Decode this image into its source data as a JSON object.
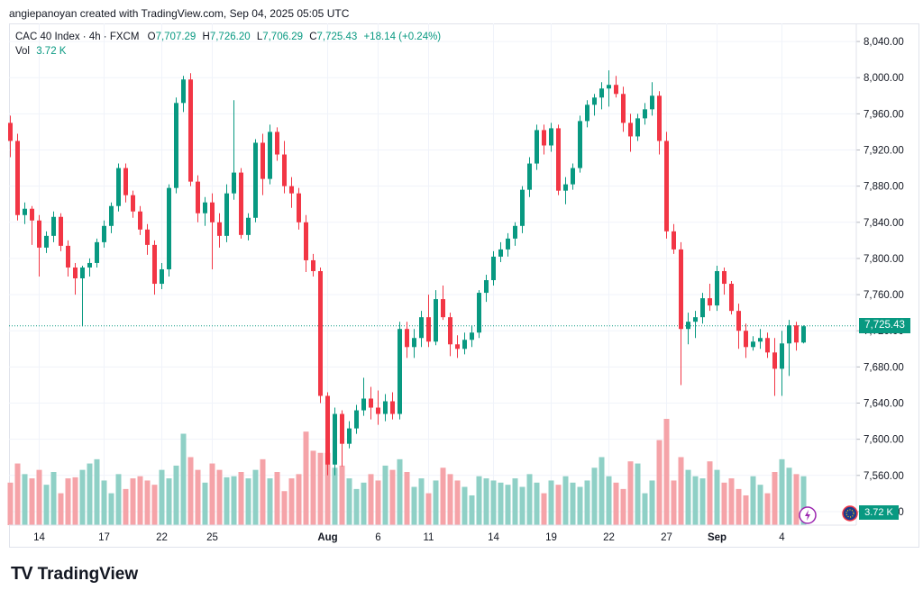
{
  "attribution": "angiepanoyan created with TradingView.com, Sep 04, 2025 05:05 UTC",
  "legend": {
    "symbol": "CAC 40 Index · 4h · FXCM",
    "open_label": "O",
    "open": "7,707.29",
    "high_label": "H",
    "high": "7,726.20",
    "low_label": "L",
    "low": "7,706.29",
    "close_label": "C",
    "close": "7,725.43",
    "change": "+18.14 (+0.24%)",
    "vol_label": "Vol",
    "vol_value": "3.72 K"
  },
  "brand": {
    "logo_mark": "TV",
    "name": "TradingView"
  },
  "colors": {
    "up": "#089981",
    "down": "#f23645",
    "up_volume": "#8fd0c6",
    "down_volume": "#f5a3a8",
    "grid": "#f0f3fa",
    "text": "#131722",
    "last_price_line": "#089981"
  },
  "price_tag": "7,725.43",
  "volume_tag": "3.72 K",
  "chart_data": {
    "type": "candlestick",
    "symbol": "CAC 40 Index",
    "interval": "4h",
    "y_axis": {
      "position": "right",
      "ticks": [
        7520,
        7560,
        7600,
        7640,
        7680,
        7720,
        7760,
        7800,
        7840,
        7880,
        7920,
        7960,
        8000,
        8040
      ],
      "tick_labels": [
        "7,520.00",
        "7,560.00",
        "7,600.00",
        "7,640.00",
        "7,680.00",
        "7,720.00",
        "7,760.00",
        "7,800.00",
        "7,840.00",
        "7,880.00",
        "7,920.00",
        "7,960.00",
        "8,000.00",
        "8,040.00"
      ],
      "range": [
        7505,
        8060
      ]
    },
    "x_axis": {
      "tick_labels": [
        "14",
        "17",
        "22",
        "25",
        "Aug",
        "6",
        "11",
        "14",
        "19",
        "22",
        "27",
        "Sep",
        "4"
      ],
      "tick_index": [
        4,
        13,
        21,
        28,
        44,
        51,
        58,
        67,
        75,
        83,
        91,
        98,
        107
      ]
    },
    "last_price": 7725.43,
    "grid": true,
    "legend_position": "top-left",
    "candles": [
      [
        7950,
        7958,
        7912,
        7930
      ],
      [
        7930,
        7938,
        7842,
        7848
      ],
      [
        7848,
        7862,
        7838,
        7855
      ],
      [
        7855,
        7858,
        7815,
        7842
      ],
      [
        7842,
        7848,
        7780,
        7812
      ],
      [
        7812,
        7830,
        7806,
        7825
      ],
      [
        7825,
        7852,
        7818,
        7846
      ],
      [
        7846,
        7850,
        7808,
        7814
      ],
      [
        7814,
        7820,
        7780,
        7790
      ],
      [
        7790,
        7795,
        7760,
        7778
      ],
      [
        7778,
        7792,
        7725,
        7790
      ],
      [
        7790,
        7800,
        7780,
        7795
      ],
      [
        7795,
        7822,
        7790,
        7818
      ],
      [
        7818,
        7842,
        7812,
        7836
      ],
      [
        7836,
        7862,
        7828,
        7858
      ],
      [
        7858,
        7905,
        7852,
        7900
      ],
      [
        7900,
        7905,
        7862,
        7870
      ],
      [
        7870,
        7875,
        7845,
        7852
      ],
      [
        7852,
        7858,
        7826,
        7832
      ],
      [
        7832,
        7838,
        7804,
        7815
      ],
      [
        7815,
        7820,
        7760,
        7772
      ],
      [
        7772,
        7795,
        7766,
        7788
      ],
      [
        7788,
        7882,
        7780,
        7878
      ],
      [
        7878,
        7978,
        7872,
        7972
      ],
      [
        7972,
        8002,
        7962,
        7998
      ],
      [
        7998,
        8005,
        7880,
        7885
      ],
      [
        7885,
        7892,
        7840,
        7850
      ],
      [
        7850,
        7868,
        7836,
        7862
      ],
      [
        7862,
        7872,
        7788,
        7840
      ],
      [
        7840,
        7850,
        7812,
        7825
      ],
      [
        7825,
        7882,
        7818,
        7872
      ],
      [
        7872,
        7975,
        7865,
        7895
      ],
      [
        7895,
        7900,
        7822,
        7826
      ],
      [
        7826,
        7850,
        7820,
        7845
      ],
      [
        7845,
        7932,
        7840,
        7928
      ],
      [
        7928,
        7938,
        7870,
        7888
      ],
      [
        7888,
        7948,
        7882,
        7940
      ],
      [
        7940,
        7945,
        7908,
        7915
      ],
      [
        7915,
        7930,
        7872,
        7880
      ],
      [
        7880,
        7890,
        7856,
        7872
      ],
      [
        7872,
        7878,
        7832,
        7840
      ],
      [
        7840,
        7848,
        7785,
        7798
      ],
      [
        7798,
        7805,
        7780,
        7786
      ],
      [
        7786,
        7790,
        7640,
        7648
      ],
      [
        7648,
        7652,
        7560,
        7572
      ],
      [
        7572,
        7635,
        7560,
        7628
      ],
      [
        7628,
        7632,
        7570,
        7595
      ],
      [
        7595,
        7620,
        7590,
        7612
      ],
      [
        7612,
        7638,
        7606,
        7632
      ],
      [
        7632,
        7668,
        7626,
        7645
      ],
      [
        7645,
        7658,
        7622,
        7635
      ],
      [
        7635,
        7654,
        7616,
        7628
      ],
      [
        7628,
        7650,
        7620,
        7642
      ],
      [
        7642,
        7652,
        7622,
        7628
      ],
      [
        7628,
        7730,
        7622,
        7722
      ],
      [
        7722,
        7730,
        7690,
        7702
      ],
      [
        7702,
        7722,
        7690,
        7712
      ],
      [
        7712,
        7742,
        7702,
        7735
      ],
      [
        7735,
        7760,
        7702,
        7708
      ],
      [
        7708,
        7765,
        7704,
        7755
      ],
      [
        7755,
        7770,
        7732,
        7735
      ],
      [
        7735,
        7740,
        7692,
        7705
      ],
      [
        7705,
        7715,
        7690,
        7700
      ],
      [
        7700,
        7718,
        7694,
        7710
      ],
      [
        7710,
        7726,
        7702,
        7718
      ],
      [
        7718,
        7765,
        7712,
        7762
      ],
      [
        7762,
        7782,
        7752,
        7776
      ],
      [
        7776,
        7808,
        7770,
        7802
      ],
      [
        7802,
        7818,
        7796,
        7810
      ],
      [
        7810,
        7828,
        7802,
        7822
      ],
      [
        7822,
        7840,
        7814,
        7836
      ],
      [
        7836,
        7880,
        7828,
        7876
      ],
      [
        7876,
        7912,
        7868,
        7905
      ],
      [
        7905,
        7948,
        7898,
        7942
      ],
      [
        7942,
        7948,
        7915,
        7925
      ],
      [
        7925,
        7950,
        7918,
        7944
      ],
      [
        7944,
        7948,
        7870,
        7875
      ],
      [
        7875,
        7890,
        7860,
        7882
      ],
      [
        7882,
        7905,
        7876,
        7900
      ],
      [
        7900,
        7958,
        7895,
        7952
      ],
      [
        7952,
        7975,
        7945,
        7970
      ],
      [
        7970,
        7982,
        7958,
        7978
      ],
      [
        7978,
        7995,
        7965,
        7988
      ],
      [
        7988,
        8008,
        7968,
        7992
      ],
      [
        7992,
        8002,
        7978,
        7982
      ],
      [
        7982,
        7990,
        7940,
        7950
      ],
      [
        7950,
        7960,
        7918,
        7935
      ],
      [
        7935,
        7960,
        7930,
        7955
      ],
      [
        7955,
        7972,
        7948,
        7965
      ],
      [
        7965,
        7995,
        7958,
        7980
      ],
      [
        7980,
        7985,
        7915,
        7930
      ],
      [
        7930,
        7940,
        7822,
        7830
      ],
      [
        7830,
        7838,
        7805,
        7810
      ],
      [
        7810,
        7818,
        7660,
        7722
      ],
      [
        7722,
        7740,
        7705,
        7730
      ],
      [
        7730,
        7742,
        7712,
        7735
      ],
      [
        7735,
        7762,
        7728,
        7756
      ],
      [
        7756,
        7772,
        7742,
        7748
      ],
      [
        7748,
        7792,
        7742,
        7786
      ],
      [
        7786,
        7790,
        7760,
        7772
      ],
      [
        7772,
        7775,
        7738,
        7742
      ],
      [
        7742,
        7750,
        7700,
        7720
      ],
      [
        7720,
        7728,
        7690,
        7702
      ],
      [
        7702,
        7714,
        7698,
        7708
      ],
      [
        7708,
        7722,
        7700,
        7712
      ],
      [
        7712,
        7718,
        7690,
        7696
      ],
      [
        7696,
        7712,
        7648,
        7678
      ],
      [
        7678,
        7720,
        7648,
        7706
      ],
      [
        7706,
        7732,
        7670,
        7726
      ],
      [
        7726,
        7730,
        7698,
        7707
      ],
      [
        7707,
        7726,
        7706,
        7725
      ]
    ],
    "volumes": [
      40,
      58,
      48,
      44,
      52,
      38,
      50,
      30,
      44,
      45,
      52,
      58,
      62,
      42,
      30,
      48,
      34,
      44,
      46,
      42,
      38,
      52,
      44,
      56,
      86,
      64,
      52,
      40,
      58,
      52,
      45,
      46,
      50,
      44,
      52,
      62,
      44,
      50,
      32,
      44,
      48,
      88,
      70,
      68,
      68,
      54,
      56,
      44,
      34,
      40,
      48,
      42,
      56,
      52,
      62,
      50,
      36,
      44,
      30,
      42,
      54,
      48,
      42,
      36,
      28,
      46,
      44,
      42,
      40,
      38,
      44,
      36,
      48,
      40,
      30,
      42,
      38,
      46,
      40,
      36,
      42,
      54,
      64,
      46,
      40,
      34,
      60,
      58,
      30,
      42,
      80,
      100,
      42,
      64,
      52,
      46,
      44,
      60,
      52,
      40,
      44,
      34,
      28,
      46,
      38,
      30,
      50,
      62,
      54,
      48,
      46
    ],
    "volume_scale_max": 100
  }
}
